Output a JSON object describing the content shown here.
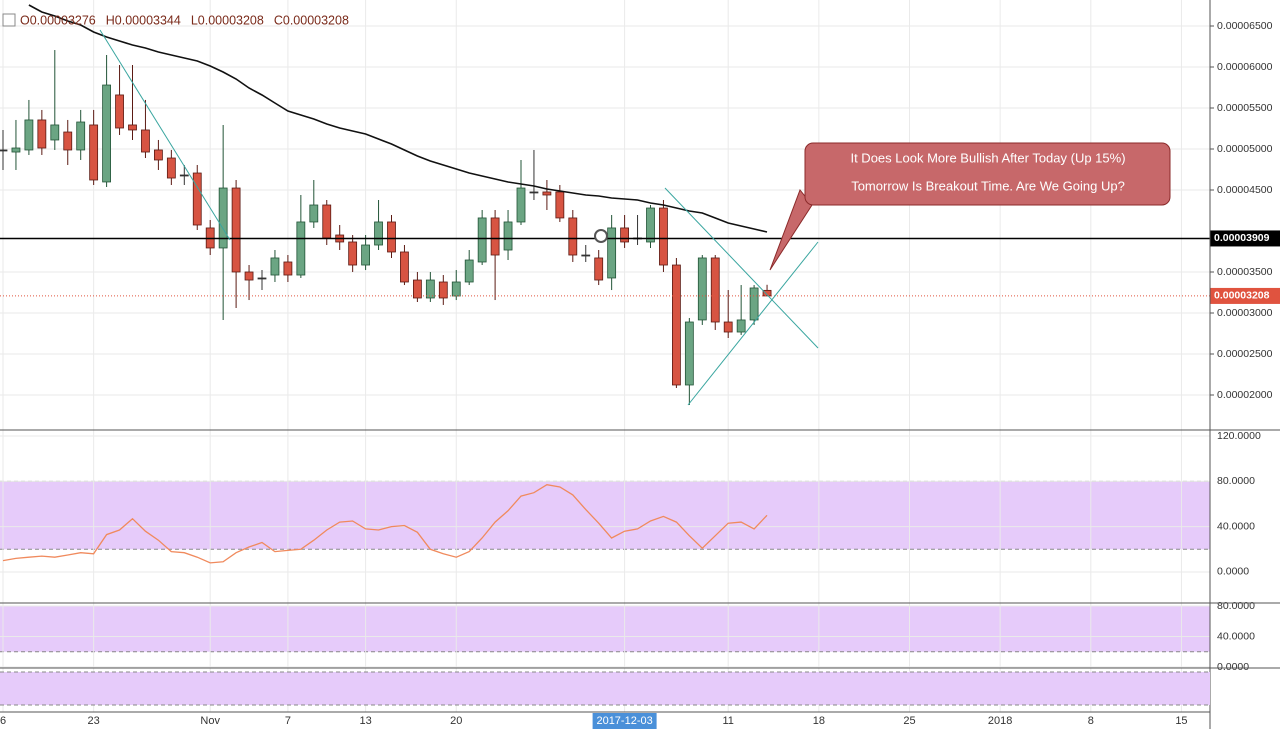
{
  "chart_data": {
    "type": "candlestick",
    "legend_labels": [
      "O0.00003276",
      "H0.00003344",
      "L0.00003208",
      "C0.00003208"
    ],
    "categories": [
      "6",
      null,
      null,
      null,
      null,
      null,
      null,
      "23",
      null,
      null,
      null,
      null,
      null,
      null,
      null,
      null,
      "Nov",
      null,
      null,
      null,
      null,
      null,
      "7",
      null,
      null,
      null,
      null,
      null,
      "13",
      null,
      null,
      null,
      null,
      null,
      null,
      "20",
      null,
      null,
      null,
      null,
      null,
      null,
      null,
      null,
      null,
      null,
      null,
      null,
      "2017-12-03",
      null,
      null,
      null,
      null,
      null,
      null,
      null,
      "11",
      null,
      null,
      null,
      null,
      null,
      null,
      "18",
      null,
      null,
      null,
      null,
      null,
      null,
      "25",
      null,
      null,
      null,
      null,
      null,
      null,
      "2018",
      null,
      null,
      null,
      null,
      null,
      null,
      "8",
      null,
      null,
      null,
      null,
      null,
      null,
      "15",
      null
    ],
    "open": [
      4.988e-05,
      4.963e-05,
      4.988e-05,
      5.354e-05,
      5.11e-05,
      5.207e-05,
      4.988e-05,
      5.293e-05,
      4.598e-05,
      5.659e-05,
      5.293e-05,
      5.232e-05,
      4.988e-05,
      4.89e-05,
      4.683e-05,
      4.707e-05,
      4.037e-05,
      3.793e-05,
      4.524e-05,
      3.5e-05,
      3.427e-05,
      3.463e-05,
      3.622e-05,
      3.463e-05,
      4.11e-05,
      4.317e-05,
      3.951e-05,
      3.866e-05,
      3.585e-05,
      3.829e-05,
      4.11e-05,
      3.744e-05,
      3.402e-05,
      3.183e-05,
      3.378e-05,
      3.207e-05,
      3.378e-05,
      3.622e-05,
      4.159e-05,
      3.768e-05,
      4.11e-05,
      4.476e-05,
      4.476e-05,
      4.476e-05,
      4.159e-05,
      3.707e-05,
      3.671e-05,
      3.427e-05,
      4.037e-05,
      3.915e-05,
      3.866e-05,
      4.28e-05,
      3.585e-05,
      2.122e-05,
      2.915e-05,
      3.671e-05,
      2.89e-05,
      2.768e-05,
      2.915e-05,
      3.276e-05,
      null,
      null,
      null,
      null,
      null,
      null,
      null,
      null,
      null,
      null,
      null,
      null,
      null,
      null,
      null,
      null,
      null,
      null,
      null,
      null,
      null,
      null,
      null,
      null,
      null,
      null,
      null,
      null,
      null,
      null,
      null,
      null,
      null
    ],
    "high": [
      5.232e-05,
      5.354e-05,
      5.598e-05,
      5.476e-05,
      6.207e-05,
      5.354e-05,
      5.476e-05,
      5.476e-05,
      6.146e-05,
      6.024e-05,
      6.024e-05,
      5.598e-05,
      5.11e-05,
      4.988e-05,
      4.805e-05,
      4.805e-05,
      4.134e-05,
      5.293e-05,
      4.622e-05,
      3.585e-05,
      3.524e-05,
      3.768e-05,
      3.707e-05,
      4.439e-05,
      4.622e-05,
      4.378e-05,
      4.073e-05,
      3.951e-05,
      3.951e-05,
      4.378e-05,
      4.195e-05,
      3.829e-05,
      3.5e-05,
      3.5e-05,
      3.463e-05,
      3.524e-05,
      3.768e-05,
      4.256e-05,
      4.256e-05,
      4.256e-05,
      4.866e-05,
      4.988e-05,
      4.622e-05,
      4.561e-05,
      4.256e-05,
      3.829e-05,
      3.768e-05,
      4.195e-05,
      4.195e-05,
      4.195e-05,
      4.317e-05,
      4.378e-05,
      3.671e-05,
      2.939e-05,
      3.707e-05,
      3.707e-05,
      3.28e-05,
      3.341e-05,
      3.341e-05,
      3.344e-05,
      null,
      null,
      null,
      null,
      null,
      null,
      null,
      null,
      null,
      null,
      null,
      null,
      null,
      null,
      null,
      null,
      null,
      null,
      null,
      null,
      null,
      null,
      null,
      null,
      null,
      null,
      null,
      null,
      null,
      null,
      null,
      null,
      null
    ],
    "low": [
      4.744e-05,
      4.744e-05,
      4.927e-05,
      4.927e-05,
      4.988e-05,
      4.805e-05,
      4.866e-05,
      4.561e-05,
      4.537e-05,
      5.171e-05,
      5.11e-05,
      4.89e-05,
      4.744e-05,
      4.561e-05,
      4.561e-05,
      4.012e-05,
      3.707e-05,
      2.915e-05,
      3.061e-05,
      3.158e-05,
      3.28e-05,
      3.378e-05,
      3.378e-05,
      3.427e-05,
      4.037e-05,
      3.829e-05,
      3.768e-05,
      3.5e-05,
      3.524e-05,
      3.768e-05,
      3.671e-05,
      3.341e-05,
      3.134e-05,
      3.134e-05,
      3.098e-05,
      3.158e-05,
      3.341e-05,
      3.585e-05,
      3.158e-05,
      3.646e-05,
      4.073e-05,
      4.378e-05,
      4.256e-05,
      4.11e-05,
      3.622e-05,
      3.622e-05,
      3.341e-05,
      3.28e-05,
      3.793e-05,
      3.829e-05,
      3.793e-05,
      3.5e-05,
      2.085e-05,
      1.878e-05,
      2.854e-05,
      2.793e-05,
      2.695e-05,
      2.732e-05,
      2.854e-05,
      3.208e-05,
      null,
      null,
      null,
      null,
      null,
      null,
      null,
      null,
      null,
      null,
      null,
      null,
      null,
      null,
      null,
      null,
      null,
      null,
      null,
      null,
      null,
      null,
      null,
      null,
      null,
      null,
      null,
      null,
      null,
      null,
      null,
      null,
      null
    ],
    "close": [
      4.988e-05,
      5.012e-05,
      5.354e-05,
      5.012e-05,
      5.293e-05,
      4.988e-05,
      5.329e-05,
      4.622e-05,
      5.78e-05,
      5.256e-05,
      5.232e-05,
      4.963e-05,
      4.866e-05,
      4.646e-05,
      4.683e-05,
      4.073e-05,
      3.793e-05,
      4.524e-05,
      3.5e-05,
      3.402e-05,
      3.427e-05,
      3.671e-05,
      3.463e-05,
      4.11e-05,
      4.317e-05,
      3.915e-05,
      3.866e-05,
      3.585e-05,
      3.829e-05,
      4.11e-05,
      3.744e-05,
      3.378e-05,
      3.183e-05,
      3.402e-05,
      3.183e-05,
      3.378e-05,
      3.646e-05,
      4.159e-05,
      3.707e-05,
      4.11e-05,
      4.524e-05,
      4.476e-05,
      4.439e-05,
      4.159e-05,
      3.707e-05,
      3.707e-05,
      3.402e-05,
      4.037e-05,
      3.866e-05,
      3.915e-05,
      4.28e-05,
      3.585e-05,
      2.122e-05,
      2.89e-05,
      3.671e-05,
      2.89e-05,
      2.768e-05,
      2.915e-05,
      3.305e-05,
      3.208e-05,
      null,
      null,
      null,
      null,
      null,
      null,
      null,
      null,
      null,
      null,
      null,
      null,
      null,
      null,
      null,
      null,
      null,
      null,
      null,
      null,
      null,
      null,
      null,
      null,
      null,
      null,
      null,
      null,
      null,
      null,
      null,
      null,
      null
    ],
    "ma": {
      "color": "#111111",
      "values": [
        null,
        null,
        6.756e-05,
        6.671e-05,
        6.622e-05,
        6.561e-05,
        6.512e-05,
        6.427e-05,
        6.366e-05,
        6.317e-05,
        6.268e-05,
        6.232e-05,
        6.183e-05,
        6.146e-05,
        6.11e-05,
        6.073e-05,
        6.012e-05,
        5.939e-05,
        5.854e-05,
        5.744e-05,
        5.659e-05,
        5.561e-05,
        5.463e-05,
        5.415e-05,
        5.366e-05,
        5.305e-05,
        5.256e-05,
        5.22e-05,
        5.183e-05,
        5.122e-05,
        5.061e-05,
        4.988e-05,
        4.915e-05,
        4.854e-05,
        4.805e-05,
        4.756e-05,
        4.707e-05,
        4.671e-05,
        4.634e-05,
        4.598e-05,
        4.573e-05,
        4.549e-05,
        4.512e-05,
        4.488e-05,
        4.463e-05,
        4.439e-05,
        4.427e-05,
        4.402e-05,
        4.39e-05,
        4.378e-05,
        4.341e-05,
        4.317e-05,
        4.28e-05,
        4.244e-05,
        4.219e-05,
        4.159e-05,
        4.098e-05,
        4.061e-05,
        4.024e-05,
        3.988e-05,
        null,
        null,
        null,
        null,
        null,
        null,
        null,
        null,
        null,
        null,
        null,
        null,
        null,
        null,
        null,
        null,
        null,
        null,
        null,
        null,
        null,
        null,
        null,
        null,
        null,
        null,
        null,
        null,
        null,
        null,
        null,
        null,
        null
      ]
    },
    "ylim": [
      1.573e-05,
      6.817e-05
    ],
    "yticks": [
      {
        "value": 6.5e-05,
        "label": "0.00006500"
      },
      {
        "value": 6e-05,
        "label": "0.00006000"
      },
      {
        "value": 5.5e-05,
        "label": "0.00005500"
      },
      {
        "value": 5e-05,
        "label": "0.00005000"
      },
      {
        "value": 4.5e-05,
        "label": "0.00004500"
      },
      {
        "value": 3.5e-05,
        "label": "0.00003500"
      },
      {
        "value": 3e-05,
        "label": "0.00003000"
      },
      {
        "value": 2.5e-05,
        "label": "0.00002500"
      },
      {
        "value": 2e-05,
        "label": "0.00002000"
      }
    ],
    "hline": {
      "value": 3.909e-05,
      "label": "0.00003909"
    },
    "last_price": {
      "value": 3.208e-05,
      "label": "0.00003208"
    },
    "annotation": [
      "It Does Look More Bullish After Today (Up 15%)",
      "Tomorrow Is Breakout Time. Are We Going Up?"
    ],
    "rsi": {
      "color": "#f08a5d",
      "band": [
        20,
        80
      ],
      "ylim": [
        -27.4,
        125.3
      ],
      "yticks": [
        {
          "value": 120,
          "label": "120.0000"
        },
        {
          "value": 80,
          "label": "80.0000"
        },
        {
          "value": 40,
          "label": "40.0000"
        },
        {
          "value": 0,
          "label": "0.0000"
        }
      ],
      "values": [
        10,
        12,
        13,
        14,
        13,
        15,
        17,
        16,
        33,
        37,
        47,
        36,
        28,
        18,
        17,
        13,
        8,
        9,
        17,
        22,
        26,
        18,
        19,
        20,
        28,
        37,
        44,
        45,
        38,
        37,
        40,
        41,
        35,
        20,
        16,
        13,
        18,
        30,
        44,
        54,
        67,
        70,
        77,
        75,
        68,
        55,
        43,
        30,
        36,
        38,
        45,
        49,
        44,
        32,
        21,
        32,
        43,
        44,
        38,
        50,
        null,
        null,
        null,
        null,
        null,
        null,
        null,
        null,
        null,
        null,
        null,
        null,
        null,
        null,
        null,
        null,
        null,
        null,
        null,
        null,
        null,
        null,
        null,
        null,
        null,
        null,
        null,
        null,
        null,
        null,
        null,
        null,
        null
      ]
    },
    "pane2": {
      "band": [
        20,
        80
      ],
      "ylim": [
        -1.3,
        83.9
      ],
      "yticks": [
        {
          "value": 80,
          "label": "80.0000"
        },
        {
          "value": 40,
          "label": "40.0000"
        },
        {
          "value": 0,
          "label": "0.0000"
        }
      ]
    }
  }
}
